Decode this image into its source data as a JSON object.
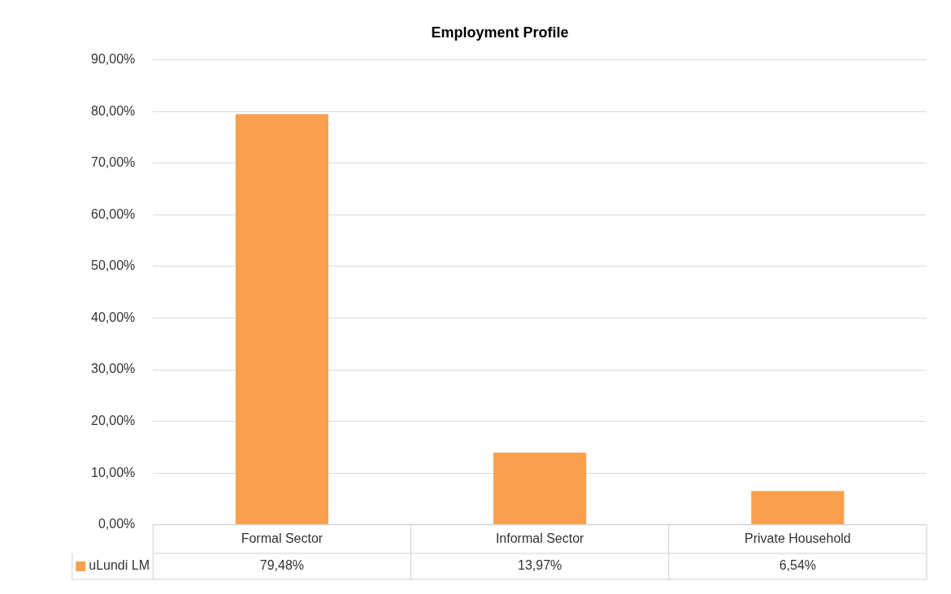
{
  "chart_data": {
    "type": "bar",
    "title": "Employment Profile",
    "categories": [
      "Formal Sector",
      "Informal Sector",
      "Private Household"
    ],
    "series": [
      {
        "name": "uLundi LM",
        "color": "#f9a04e",
        "values": [
          79.48,
          13.97,
          6.54
        ],
        "value_labels": [
          "79,48%",
          "13,97%",
          "6,54%"
        ]
      }
    ],
    "ylim": [
      0,
      90
    ],
    "yticks": [
      {
        "value": 0,
        "label": "0,00%"
      },
      {
        "value": 10,
        "label": "10,00%"
      },
      {
        "value": 20,
        "label": "20,00%"
      },
      {
        "value": 30,
        "label": "30,00%"
      },
      {
        "value": 40,
        "label": "40,00%"
      },
      {
        "value": 50,
        "label": "50,00%"
      },
      {
        "value": 60,
        "label": "60,00%"
      },
      {
        "value": 70,
        "label": "70,00%"
      },
      {
        "value": 80,
        "label": "80,00%"
      },
      {
        "value": 90,
        "label": "90,00%"
      }
    ],
    "grid": "y",
    "legend": "bottom left"
  }
}
